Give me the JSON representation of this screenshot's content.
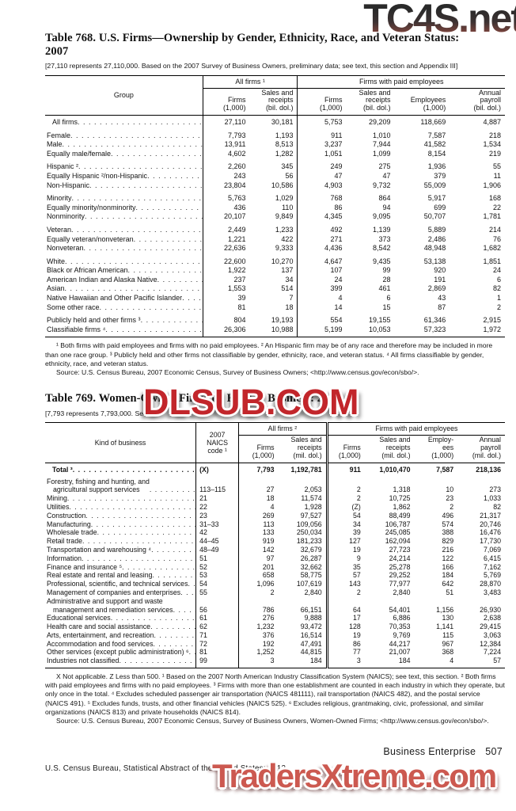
{
  "watermarks": {
    "top": "TC4S.net",
    "middle": "DLSUB.COM",
    "bottom": "TradersXtreme.com"
  },
  "colors": {
    "watermark_mid_red": "#c2262b",
    "watermark_bottom_salmon": "#cc5950",
    "watermark_top_gradient": [
      "#2a2a2a",
      "#84463e"
    ],
    "text": "#111111",
    "background": "#ffffff"
  },
  "table768": {
    "title": "Table 768. U.S. Firms—Ownership by Gender, Ethnicity, Race, and Veteran Status: 2007",
    "headnote": "[27,110 represents 27,110,000. Based on the 2007 Survey of Business Owners, preliminary data; see text, this section and Appendix III]",
    "col_group": "Group",
    "span1": "All firms ¹",
    "span2": "Firms with paid employees",
    "cols": [
      "Firms\n(1,000)",
      "Sales and\nreceipts\n(bil. dol.)",
      "Firms\n(1,000)",
      "Sales and\nreceipts\n(bil. dol.)",
      "Employees\n(1,000)",
      "Annual\npayroll\n(bil. dol.)"
    ],
    "rows": [
      {
        "label": "All firms",
        "indent": true,
        "values": [
          "27,110",
          "30,181",
          "5,753",
          "29,209",
          "118,669",
          "4,887"
        ]
      },
      {
        "label": "Female",
        "gap": true,
        "values": [
          "7,793",
          "1,193",
          "911",
          "1,010",
          "7,587",
          "218"
        ]
      },
      {
        "label": "Male",
        "values": [
          "13,911",
          "8,513",
          "3,237",
          "7,944",
          "41,582",
          "1,534"
        ]
      },
      {
        "label": "Equally male/female",
        "values": [
          "4,602",
          "1,282",
          "1,051",
          "1,099",
          "8,154",
          "219"
        ]
      },
      {
        "label": "Hispanic ²",
        "gap": true,
        "values": [
          "2,260",
          "345",
          "249",
          "275",
          "1,936",
          "55"
        ]
      },
      {
        "label": "Equally Hispanic ²/non-Hispanic",
        "values": [
          "243",
          "56",
          "47",
          "47",
          "379",
          "11"
        ]
      },
      {
        "label": "Non-Hispanic",
        "values": [
          "23,804",
          "10,586",
          "4,903",
          "9,732",
          "55,009",
          "1,906"
        ]
      },
      {
        "label": "Minority",
        "gap": true,
        "values": [
          "5,763",
          "1,029",
          "768",
          "864",
          "5,917",
          "168"
        ]
      },
      {
        "label": "Equally minority/nonminority",
        "values": [
          "436",
          "110",
          "86",
          "94",
          "699",
          "22"
        ]
      },
      {
        "label": "Nonminority",
        "values": [
          "20,107",
          "9,849",
          "4,345",
          "9,095",
          "50,707",
          "1,781"
        ]
      },
      {
        "label": "Veteran",
        "gap": true,
        "values": [
          "2,449",
          "1,233",
          "492",
          "1,139",
          "5,889",
          "214"
        ]
      },
      {
        "label": "Equally veteran/nonveteran",
        "values": [
          "1,221",
          "422",
          "271",
          "373",
          "2,486",
          "76"
        ]
      },
      {
        "label": "Nonveteran",
        "values": [
          "22,636",
          "9,333",
          "4,436",
          "8,542",
          "48,948",
          "1,682"
        ]
      },
      {
        "label": "White",
        "gap": true,
        "values": [
          "22,600",
          "10,270",
          "4,647",
          "9,435",
          "53,138",
          "1,851"
        ]
      },
      {
        "label": "Black or African American",
        "values": [
          "1,922",
          "137",
          "107",
          "99",
          "920",
          "24"
        ]
      },
      {
        "label": "American Indian and Alaska Native",
        "values": [
          "237",
          "34",
          "24",
          "28",
          "191",
          "6"
        ]
      },
      {
        "label": "Asian",
        "values": [
          "1,553",
          "514",
          "399",
          "461",
          "2,869",
          "82"
        ]
      },
      {
        "label": "Native Hawaiian and Other Pacific Islander",
        "values": [
          "39",
          "7",
          "4",
          "6",
          "43",
          "1"
        ]
      },
      {
        "label": "Some other race",
        "values": [
          "81",
          "18",
          "14",
          "15",
          "87",
          "2"
        ]
      },
      {
        "label": "Publicly held and other firms ³",
        "gap": true,
        "values": [
          "804",
          "19,193",
          "554",
          "19,155",
          "61,346",
          "2,915"
        ]
      },
      {
        "label": "Classifiable firms ⁴",
        "values": [
          "26,306",
          "10,988",
          "5,199",
          "10,053",
          "57,323",
          "1,972"
        ]
      }
    ],
    "footnote": "¹ Both firms with paid employees and firms with no paid employees. ² An Hispanic firm may be of any race and therefore may be included in more than one race group. ³ Publicly held and other firms not classifiable by gender, ethnicity, race, and veteran status. ⁴ All firms classifiable by gender, ethnicity, race, and veteran status.",
    "source": "Source: U.S. Census Bureau, 2007 Economic Census, Survey of Business Owners; <http://www.census.gov/econ/sbo/>."
  },
  "table769": {
    "title": "Table 769. Women-Owned Firms by Kind of Business: 2007",
    "headnote": "[7,793 represents 7,793,000. Se",
    "col_kind": "Kind of business",
    "col_naics": "2007\nNAICS\ncode ¹",
    "span1": "All firms ²",
    "span2": "Firms with paid employees",
    "cols": [
      "Firms\n(1,000)",
      "Sales and\nreceipts\n(mil. dol.)",
      "Firms\n(1,000)",
      "Sales and\nreceipts\n(mil. dol.)",
      "Employ-\nees\n(1,000)",
      "Annual\npayroll\n(mil. dol.)"
    ],
    "rows": [
      {
        "label": "Total ³",
        "indent": true,
        "bold": true,
        "values": [
          "(X)",
          "7,793",
          "1,192,781",
          "911",
          "1,010,470",
          "7,587",
          "218,136"
        ]
      },
      {
        "label": "Forestry, fishing and hunting, and",
        "label2": "agricultural support services",
        "gap": true,
        "values": [
          "113–115",
          "27",
          "2,053",
          "2",
          "1,318",
          "10",
          "273"
        ]
      },
      {
        "label": "Mining",
        "values": [
          "21",
          "18",
          "11,574",
          "2",
          "10,725",
          "23",
          "1,033"
        ]
      },
      {
        "label": "Utilities",
        "values": [
          "22",
          "4",
          "1,928",
          "(Z)",
          "1,862",
          "2",
          "82"
        ]
      },
      {
        "label": "Construction",
        "values": [
          "23",
          "269",
          "97,527",
          "54",
          "88,499",
          "496",
          "21,317"
        ]
      },
      {
        "label": "Manufacturing",
        "values": [
          "31–33",
          "113",
          "109,056",
          "34",
          "106,787",
          "574",
          "20,746"
        ]
      },
      {
        "label": "Wholesale trade",
        "values": [
          "42",
          "133",
          "250,034",
          "39",
          "245,085",
          "388",
          "16,476"
        ]
      },
      {
        "label": "Retail trade",
        "values": [
          "44–45",
          "919",
          "181,233",
          "127",
          "162,094",
          "829",
          "17,730"
        ]
      },
      {
        "label": "Transportation and warehousing ⁴",
        "values": [
          "48–49",
          "142",
          "32,679",
          "19",
          "27,723",
          "216",
          "7,069"
        ]
      },
      {
        "label": "Information",
        "values": [
          "51",
          "97",
          "26,287",
          "9",
          "24,214",
          "122",
          "6,415"
        ]
      },
      {
        "label": "Finance and insurance ⁵",
        "values": [
          "52",
          "201",
          "32,662",
          "35",
          "25,278",
          "166",
          "7,162"
        ]
      },
      {
        "label": "Real estate and rental and leasing",
        "values": [
          "53",
          "658",
          "58,775",
          "57",
          "29,252",
          "184",
          "5,769"
        ]
      },
      {
        "label": "Professional, scientific, and technical services",
        "values": [
          "54",
          "1,096",
          "107,619",
          "143",
          "77,977",
          "642",
          "28,870"
        ]
      },
      {
        "label": "Management of companies and enterprises",
        "values": [
          "55",
          "2",
          "2,840",
          "2",
          "2,840",
          "51",
          "3,483"
        ]
      },
      {
        "label": "Administrative and support and waste",
        "label2": "management and remediation services",
        "values": [
          "56",
          "786",
          "66,151",
          "64",
          "54,401",
          "1,156",
          "26,930"
        ]
      },
      {
        "label": "Educational services",
        "values": [
          "61",
          "276",
          "9,888",
          "17",
          "6,886",
          "130",
          "2,638"
        ]
      },
      {
        "label": "Health care and social assistance",
        "values": [
          "62",
          "1,232",
          "93,472",
          "128",
          "70,353",
          "1,141",
          "29,415"
        ]
      },
      {
        "label": "Arts, entertainment, and recreation",
        "values": [
          "71",
          "376",
          "16,514",
          "19",
          "9,769",
          "115",
          "3,063"
        ]
      },
      {
        "label": "Accommodation and food services",
        "values": [
          "72",
          "192",
          "47,491",
          "86",
          "44,217",
          "967",
          "12,384"
        ]
      },
      {
        "label": "Other services (except public administration) ⁶",
        "values": [
          "81",
          "1,252",
          "44,815",
          "77",
          "21,007",
          "368",
          "7,224"
        ]
      },
      {
        "label": "Industries not classified",
        "values": [
          "99",
          "3",
          "184",
          "3",
          "184",
          "4",
          "57"
        ]
      }
    ],
    "footnote": "X Not applicable. Z Less than 500. ¹ Based on the 2007 North American Industry Classification System (NAICS); see text, this section. ² Both firms with paid employees and firms with no paid employees. ³ Firms with more than one establishment are counted in each industry in which they operate, but only once in the total. ⁴ Excludes scheduled passenger air transportation (NAICS 481111), rail transportation (NAICS 482),  and the postal service (NAICS 491). ⁵ Excludes funds, trusts, and other financial vehicles (NAICS 525). ⁶ Excludes religious, grantmaking, civic, professional, and similar organizations (NAICS 813) and private households (NAICS 814).",
    "source": "Source: U.S. Census Bureau, 2007 Economic Census, Survey of Business Owners, Women-Owned Firms; <http://www.census.gov/econ/sbo/>."
  },
  "footer": {
    "right_label": "Business Enterprise",
    "right_page": "507",
    "left": "U.S. Census Bureau, Statistical Abstract of the United States: 2012"
  }
}
